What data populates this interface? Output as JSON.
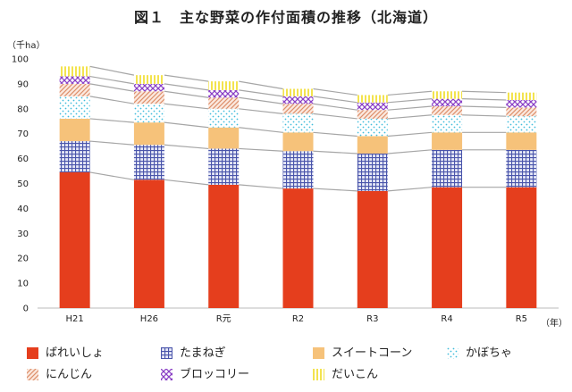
{
  "title": "図１　主な野菜の作付面積の推移（北海道）",
  "yunit": "（千ha）",
  "xunit": "（年）",
  "colors": {
    "ばれいしょ": "#e53e1d",
    "たまねぎ": "#5a64b4",
    "スイートコーン": "#f6c27a",
    "かぼちゃ": "#5fd0e8",
    "にんじん": "#e9a582",
    "ブロッコリー": "#9a4fd0",
    "だいこん": "#f6e236"
  },
  "chart_data": {
    "type": "bar",
    "stacked": true,
    "categories": [
      "H21",
      "H26",
      "R元",
      "R2",
      "R3",
      "R4",
      "R5"
    ],
    "series": [
      {
        "name": "ばれいしょ",
        "values": [
          54.5,
          51.5,
          49.5,
          48.0,
          47.0,
          48.5,
          48.5
        ]
      },
      {
        "name": "たまねぎ",
        "values": [
          12.5,
          14.0,
          14.5,
          15.0,
          15.0,
          15.0,
          15.0
        ]
      },
      {
        "name": "スイートコーン",
        "values": [
          9.0,
          9.0,
          8.5,
          7.5,
          7.0,
          7.0,
          7.0
        ]
      },
      {
        "name": "かぼちゃ",
        "values": [
          9.0,
          7.5,
          7.5,
          7.5,
          7.0,
          7.0,
          6.5
        ]
      },
      {
        "name": "にんじん",
        "values": [
          5.0,
          5.0,
          4.5,
          4.0,
          3.5,
          3.5,
          3.5
        ]
      },
      {
        "name": "ブロッコリー",
        "values": [
          3.0,
          3.0,
          3.0,
          3.0,
          3.0,
          3.0,
          3.0
        ]
      },
      {
        "name": "だいこん",
        "values": [
          4.0,
          3.5,
          3.5,
          3.0,
          3.0,
          3.0,
          3.0
        ]
      }
    ],
    "yticks": [
      0,
      10,
      20,
      30,
      40,
      50,
      60,
      70,
      80,
      90,
      100
    ],
    "ylim": [
      0,
      100
    ],
    "grid": false,
    "connector_lines": true,
    "legend": "bottom"
  }
}
